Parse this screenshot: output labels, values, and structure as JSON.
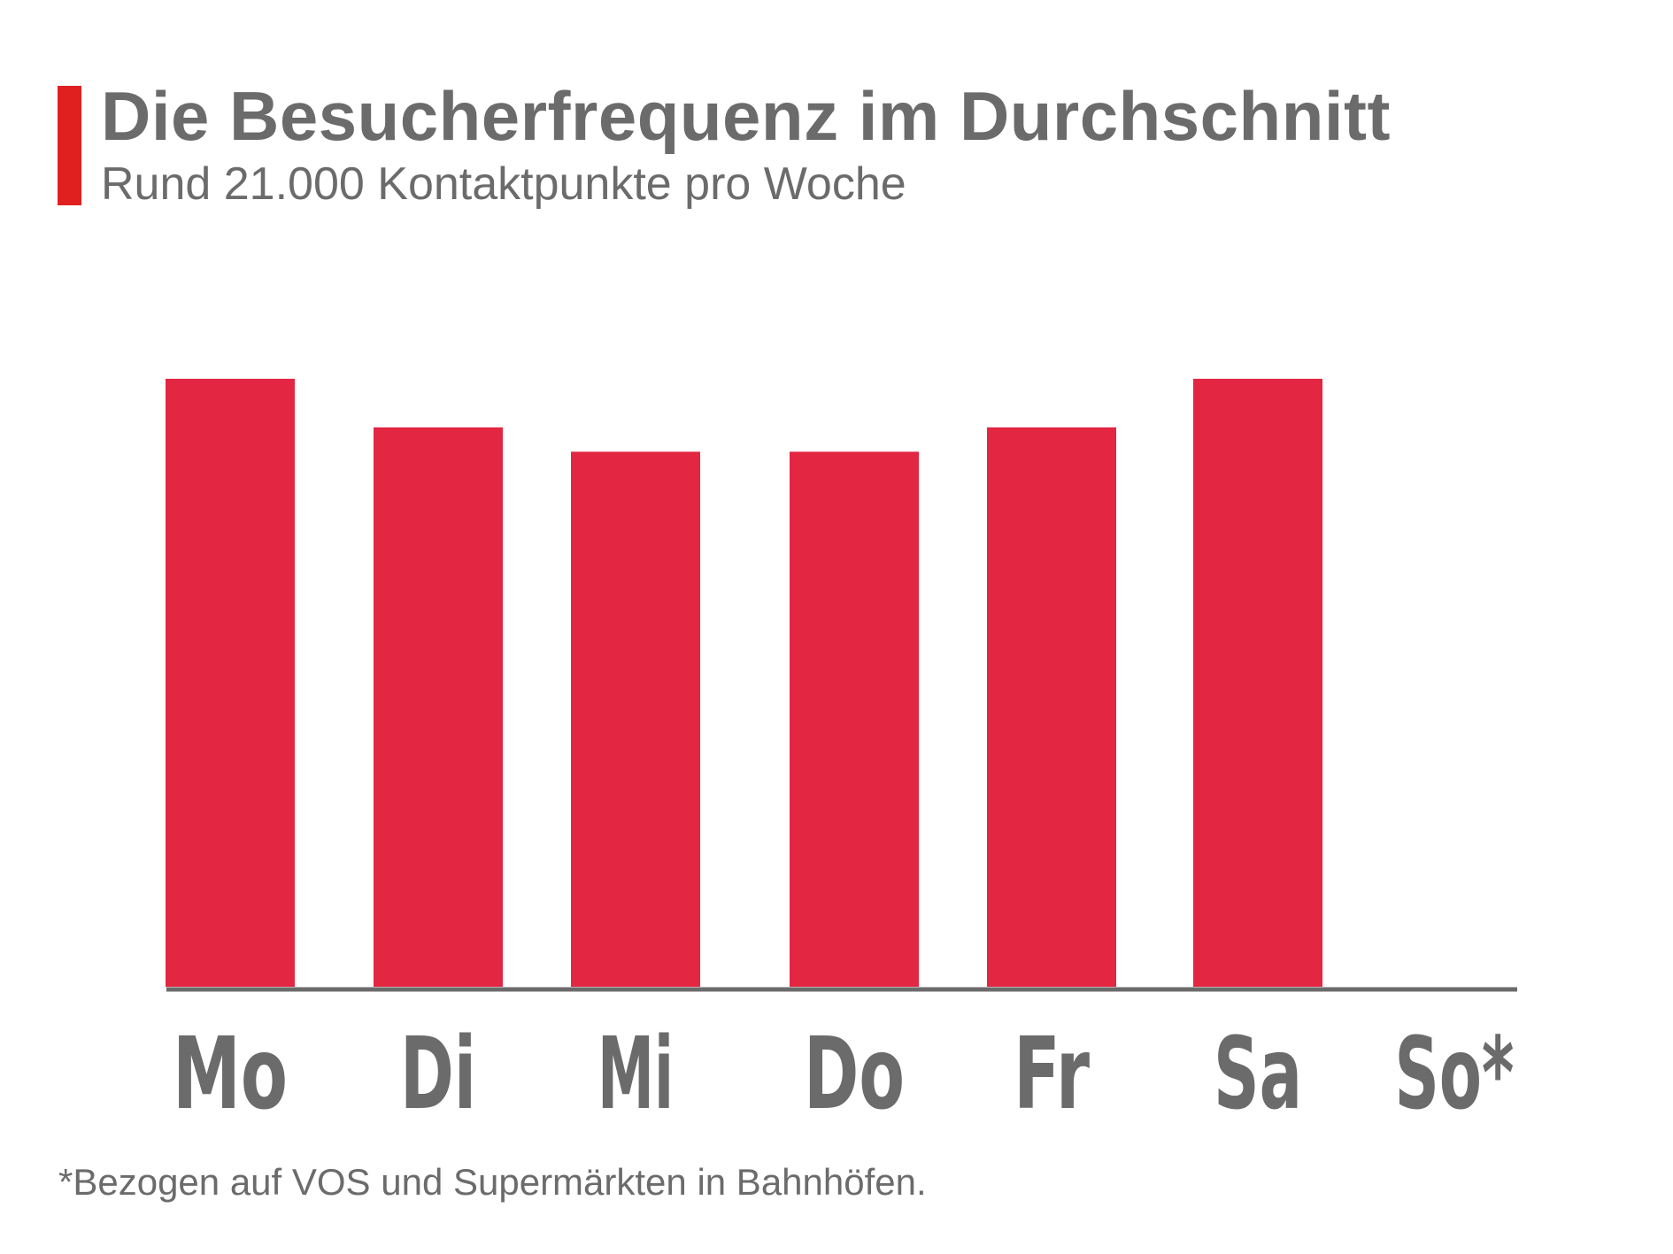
{
  "header": {
    "title": "Die Besucherfrequenz im Durchschnitt",
    "subtitle": "Rund 21.000 Kontaktpunkte pro Woche"
  },
  "footnote": "*Bezogen auf VOS und Supermärkten in Bahnhöfen.",
  "colors": {
    "accent": "#e0201f",
    "bar": "#e32642",
    "axis": "#6b6b6b",
    "text": "#6b6b6b"
  },
  "chart_data": {
    "type": "bar",
    "title": "Die Besucherfrequenz im Durchschnitt",
    "subtitle": "Rund 21.000 Kontaktpunkte pro Woche",
    "categories": [
      "Mo",
      "Di",
      "Mi",
      "Do",
      "Fr",
      "Sa",
      "So*"
    ],
    "values": [
      100,
      92,
      88,
      88,
      92,
      100,
      0
    ],
    "values_note": "relative bar heights; no numeric axis shown",
    "ylim": [
      0,
      100
    ],
    "grid": false,
    "legend": "none"
  }
}
